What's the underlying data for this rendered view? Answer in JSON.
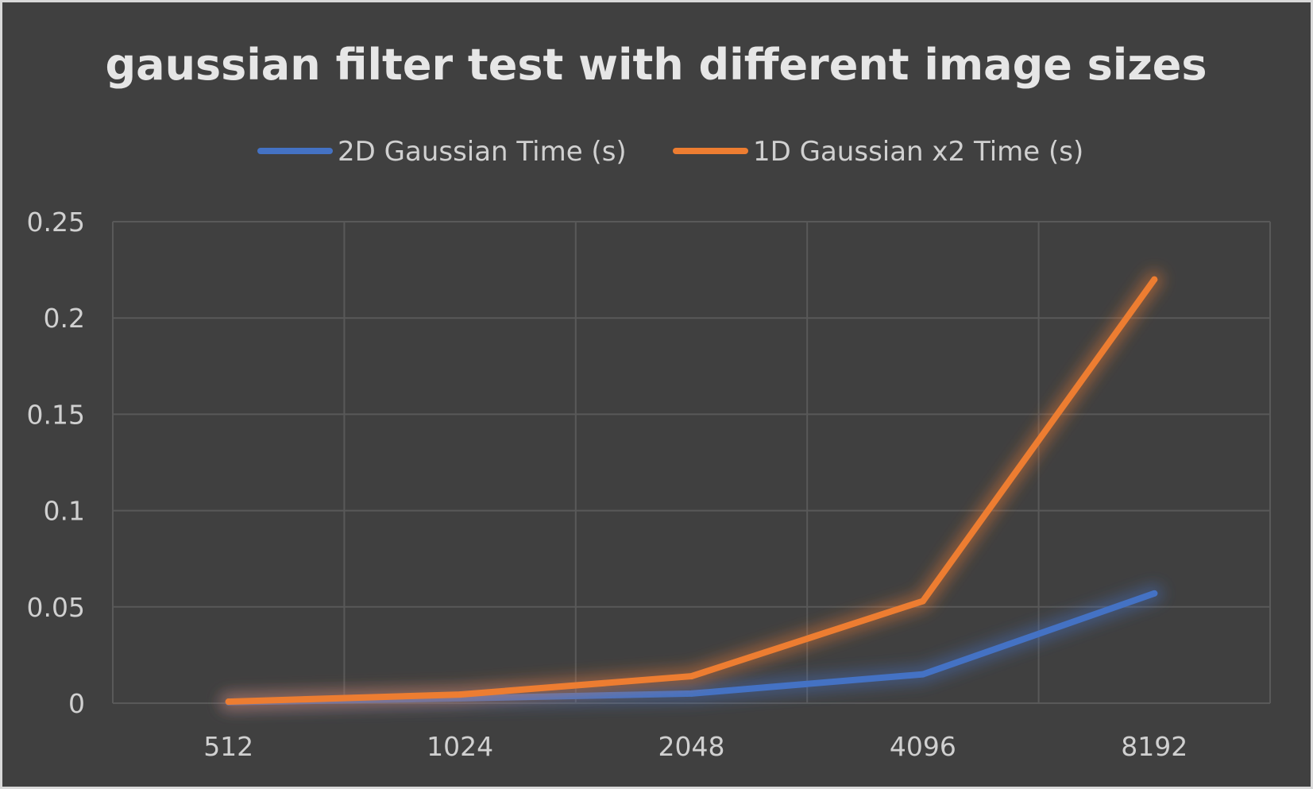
{
  "chart_data": {
    "type": "line",
    "title": "gaussian filter test with different image sizes",
    "xlabel": "",
    "ylabel": "",
    "categories": [
      "512",
      "1024",
      "2048",
      "4096",
      "8192"
    ],
    "series": [
      {
        "name": "2D Gaussian Time (s)",
        "color": "#4472c4",
        "values": [
          0.0005,
          0.0025,
          0.005,
          0.015,
          0.057
        ]
      },
      {
        "name": "1D Gaussian x2 Time (s)",
        "color": "#ed7d31",
        "values": [
          0.0008,
          0.0045,
          0.014,
          0.053,
          0.22
        ]
      }
    ],
    "ylim": [
      0,
      0.25
    ],
    "yticks": [
      "0",
      "0.05",
      "0.1",
      "0.15",
      "0.2",
      "0.25"
    ],
    "ytick_values": [
      0,
      0.05,
      0.1,
      0.15,
      0.2,
      0.25
    ],
    "grid": true,
    "legend_position": "top"
  }
}
